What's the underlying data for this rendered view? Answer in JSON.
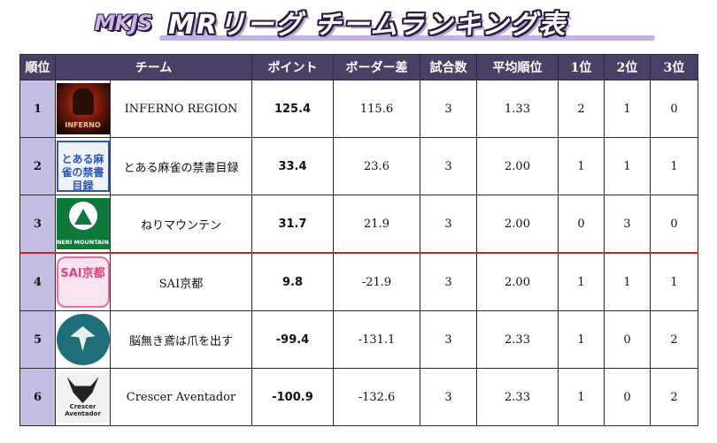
{
  "header": {
    "logo_text": "MKJS",
    "title": "MRリーグ チームランキング表"
  },
  "table": {
    "columns": {
      "rank": "順位",
      "team": "チーム",
      "points": "ポイント",
      "border_diff": "ボーダー差",
      "games": "試合数",
      "avg_rank": "平均順位",
      "first": "1位",
      "second": "2位",
      "third": "3位"
    },
    "rows": [
      {
        "rank": "1",
        "team": "INFERNO REGION",
        "logo_label": "INFERNO",
        "points": "125.4",
        "border_diff": "115.6",
        "games": "3",
        "avg_rank": "1.33",
        "first": "2",
        "second": "1",
        "third": "0"
      },
      {
        "rank": "2",
        "team": "とある麻雀の禁書目録",
        "logo_label": "とある麻雀の禁書目録",
        "points": "33.4",
        "border_diff": "23.6",
        "games": "3",
        "avg_rank": "2.00",
        "first": "1",
        "second": "1",
        "third": "1"
      },
      {
        "rank": "3",
        "team": "ねりマウンテン",
        "logo_label": "NERI MOUNTAIN",
        "points": "31.7",
        "border_diff": "21.9",
        "games": "3",
        "avg_rank": "2.00",
        "first": "0",
        "second": "3",
        "third": "0"
      },
      {
        "rank": "4",
        "team": "SAI京都",
        "logo_label": "SAI京都",
        "points": "9.8",
        "border_diff": "-21.9",
        "games": "3",
        "avg_rank": "2.00",
        "first": "1",
        "second": "1",
        "third": "1"
      },
      {
        "rank": "5",
        "team": "脳無き鳶は爪を出す",
        "logo_label": "",
        "points": "-99.4",
        "border_diff": "-131.1",
        "games": "3",
        "avg_rank": "2.33",
        "first": "1",
        "second": "0",
        "third": "2"
      },
      {
        "rank": "6",
        "team": "Crescer Aventador",
        "logo_label": "Crescer Aventador",
        "points": "-100.9",
        "border_diff": "-132.6",
        "games": "3",
        "avg_rank": "2.33",
        "first": "1",
        "second": "0",
        "third": "2"
      }
    ]
  },
  "colors": {
    "header_bg": "#4b3f66",
    "rank_bg": "#c6bde4",
    "border_line": "#d0202a"
  }
}
